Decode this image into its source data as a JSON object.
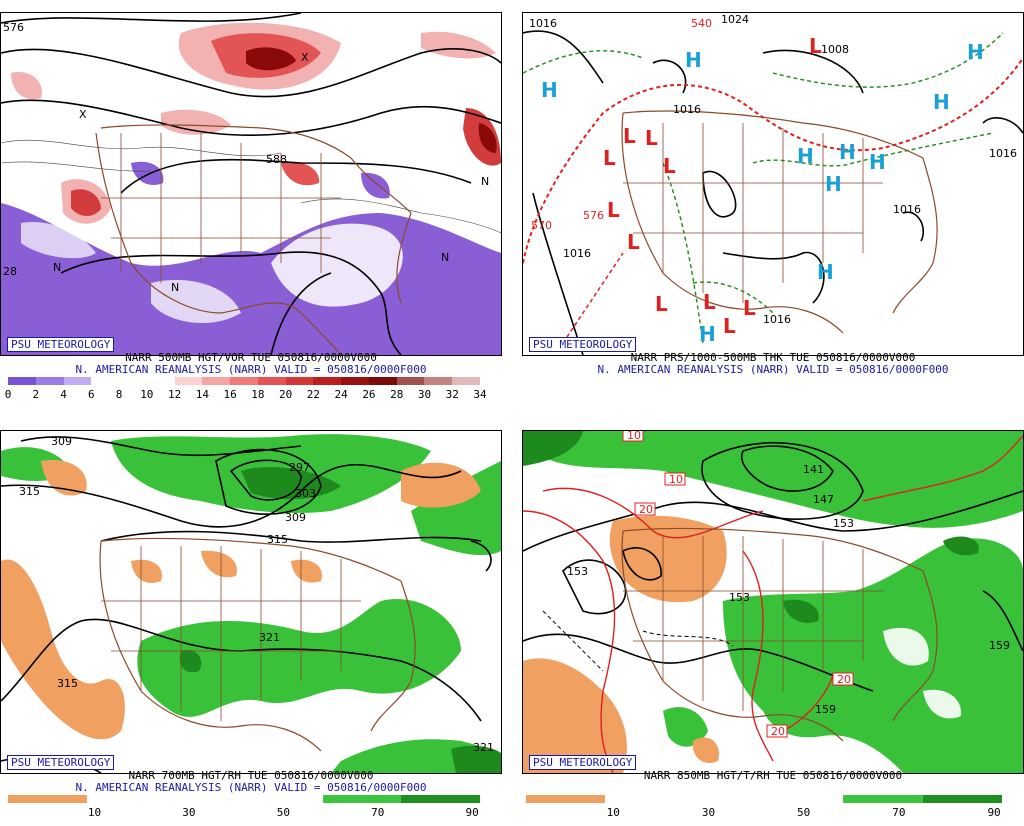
{
  "panels": [
    {
      "psu": "PSU METEOROLOGY",
      "title": "NARR 500MB HGT/VOR TUE 050816/0000V000",
      "subtitle": "N. AMERICAN REANALYSIS (NARR) VALID = 050816/0000F000",
      "colorbar": {
        "labels": [
          "0",
          "2",
          "4",
          "6",
          "8",
          "10",
          "12",
          "14",
          "16",
          "18",
          "20",
          "22",
          "24",
          "26",
          "28",
          "30",
          "32",
          "34"
        ],
        "colors": [
          "#7b52d6",
          "#9b7be6",
          "#c1aef2",
          "#ffffff",
          "#ffffff",
          "#ffffff",
          "#fbd2d2",
          "#f6a5a5",
          "#ef7b7b",
          "#e35454",
          "#d23636",
          "#b81f1f",
          "#971010",
          "#7a0b0b",
          "#a25050",
          "#c48484",
          "#e2b8b8"
        ]
      },
      "map_labels": [
        "576",
        "588",
        "N",
        "X",
        "28"
      ]
    },
    {
      "psu": "PSU METEOROLOGY",
      "title": "NARR PRS/1000-500MB THK TUE 050816/0000V000",
      "subtitle": "N. AMERICAN REANALYSIS (NARR) VALID = 050816/0000F000",
      "map_labels": [
        "1016",
        "1024",
        "1008",
        "570",
        "576",
        "540",
        "H",
        "L"
      ]
    },
    {
      "psu": "PSU METEOROLOGY",
      "title": "NARR 700MB HGT/RH TUE 050816/0000V000",
      "subtitle": "N. AMERICAN REANALYSIS (NARR) VALID = 050816/0000F000",
      "colorbar": {
        "labels": [
          "10",
          "30",
          "50",
          "70",
          "90"
        ],
        "colors": [
          "#f0a060",
          "#ffffff",
          "#ffffff",
          "#ffffff",
          "#3ec43e",
          "#1f8f1f"
        ]
      },
      "map_labels": [
        "309",
        "315",
        "297",
        "303",
        "321"
      ]
    },
    {
      "psu": "PSU METEOROLOGY",
      "title": "NARR 850MB HGT/T/RH TUE 050816/0000V000",
      "subtitle": "",
      "colorbar": {
        "labels": [
          "10",
          "30",
          "50",
          "70",
          "90"
        ],
        "colors": [
          "#f0a060",
          "#ffffff",
          "#ffffff",
          "#ffffff",
          "#3ec43e",
          "#1f8f1f"
        ]
      },
      "map_labels": [
        "10",
        "20",
        "153",
        "141",
        "147",
        "159"
      ]
    }
  ],
  "colors": {
    "purple": "#8a5fd6",
    "red": "#d23c3c",
    "pink": "#f3b2b2",
    "dark_red": "#8a0a0a",
    "green": "#39c139",
    "dark_green": "#1e8a1e",
    "orange": "#f0a060",
    "brown": "#8b4a2b",
    "label_red": "#e02020",
    "label_blue": "#1aa0d8",
    "psu_blue": "#1a1aa8"
  }
}
